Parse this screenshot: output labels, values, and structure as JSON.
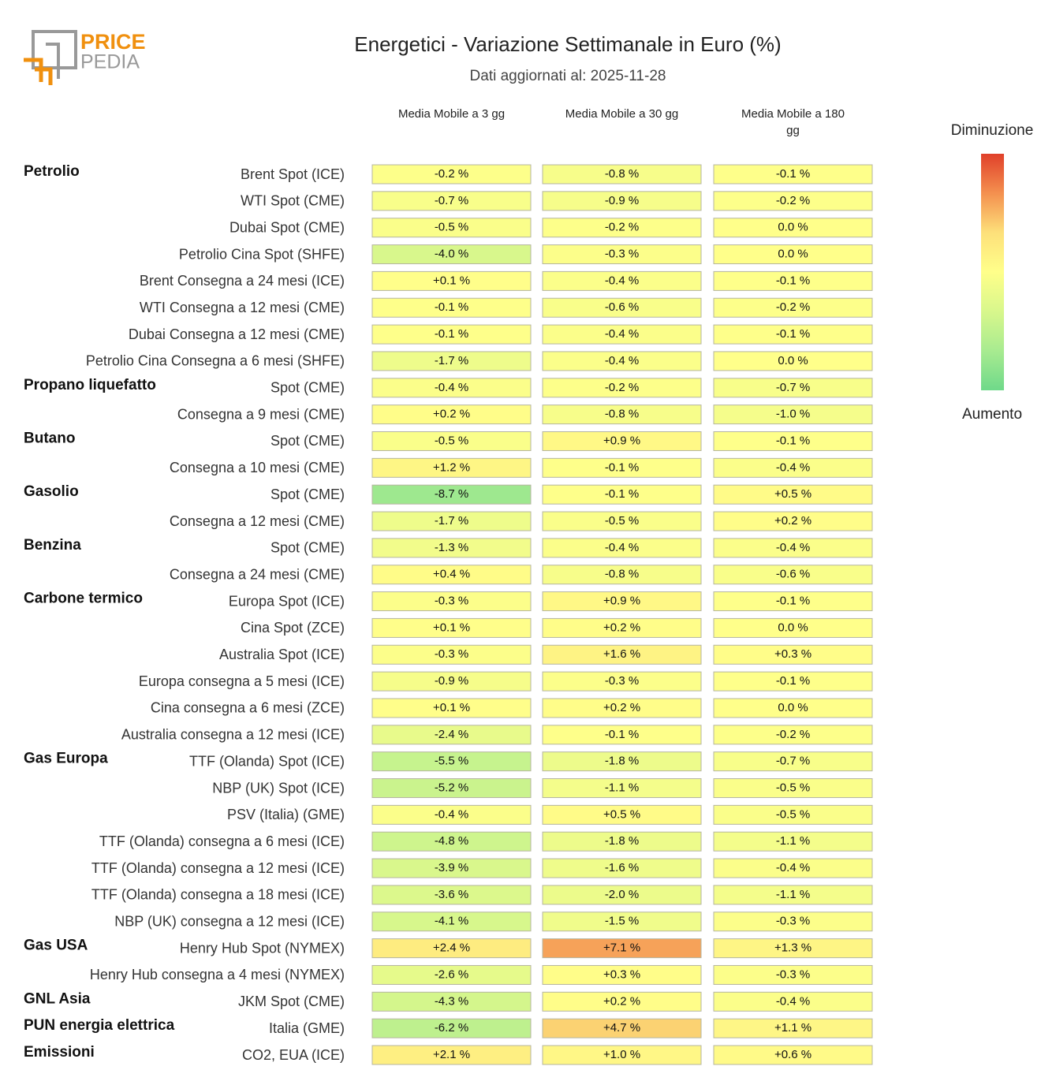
{
  "logo": {
    "line1": "PRICE",
    "line2": "PEDIA"
  },
  "chart_data": {
    "type": "heatmap",
    "title": "Energetici - Variazione Settimanale in Euro (%)",
    "subtitle": "Dati aggiornati al: 2025-11-28",
    "categories": [
      "Brent Spot (ICE)",
      "WTI Spot (CME)",
      "Dubai Spot (CME)",
      "Petrolio Cina Spot (SHFE)",
      "Brent Consegna a 24 mesi (ICE)",
      "WTI Consegna a 12 mesi (CME)",
      "Dubai Consegna a 12 mesi (CME)",
      "Petrolio Cina Consegna a 6 mesi (SHFE)",
      "Spot (CME)",
      "Consegna a 9 mesi (CME)",
      "Spot (CME)",
      "Consegna a 10 mesi (CME)",
      "Spot (CME)",
      "Consegna a 12 mesi (CME)",
      "Spot (CME)",
      "Consegna a 24 mesi (CME)",
      "Europa Spot (ICE)",
      "Cina Spot (ZCE)",
      "Australia Spot (ICE)",
      "Europa consegna a 5 mesi (ICE)",
      "Cina consegna a 6 mesi (ZCE)",
      "Australia consegna a 12 mesi (ICE)",
      "TTF (Olanda) Spot (ICE)",
      "NBP (UK) Spot (ICE)",
      "PSV (Italia) (GME)",
      "TTF (Olanda) consegna a 6 mesi (ICE)",
      "TTF (Olanda) consegna a 12 mesi (ICE)",
      "TTF (Olanda) consegna a 18 mesi (ICE)",
      "NBP (UK) consegna a 12 mesi (ICE)",
      "Henry Hub Spot (NYMEX)",
      "Henry Hub consegna a 4 mesi (NYMEX)",
      "JKM Spot (CME)",
      "Italia (GME)",
      "CO2, EUA (ICE)"
    ],
    "groups": [
      "Petrolio",
      null,
      null,
      null,
      null,
      null,
      null,
      null,
      "Propano liquefatto",
      null,
      "Butano",
      null,
      "Gasolio",
      null,
      "Benzina",
      null,
      "Carbone termico",
      null,
      null,
      null,
      null,
      null,
      "Gas Europa",
      null,
      null,
      null,
      null,
      null,
      null,
      "Gas USA",
      null,
      "GNL Asia",
      "PUN energia elettrica",
      "Emissioni"
    ],
    "series": [
      {
        "name": "Media Mobile a 3 gg",
        "values": [
          -0.2,
          -0.7,
          -0.5,
          -4.0,
          0.1,
          -0.1,
          -0.1,
          -1.7,
          -0.4,
          0.2,
          -0.5,
          1.2,
          -8.7,
          -1.7,
          -1.3,
          0.4,
          -0.3,
          0.1,
          -0.3,
          -0.9,
          0.1,
          -2.4,
          -5.5,
          -5.2,
          -0.4,
          -4.8,
          -3.9,
          -3.6,
          -4.1,
          2.4,
          -2.6,
          -4.3,
          -6.2,
          2.1
        ],
        "value_labels": [
          "-0.2 %",
          "-0.7 %",
          "-0.5 %",
          "-4.0 %",
          "+0.1 %",
          "-0.1 %",
          "-0.1 %",
          "-1.7 %",
          "-0.4 %",
          "+0.2 %",
          "-0.5 %",
          "+1.2 %",
          "-8.7 %",
          "-1.7 %",
          "-1.3 %",
          "+0.4 %",
          "-0.3 %",
          "+0.1 %",
          "-0.3 %",
          "-0.9 %",
          "+0.1 %",
          "-2.4 %",
          "-5.5 %",
          "-5.2 %",
          "-0.4 %",
          "-4.8 %",
          "-3.9 %",
          "-3.6 %",
          "-4.1 %",
          "+2.4 %",
          "-2.6 %",
          "-4.3 %",
          "-6.2 %",
          "+2.1 %"
        ]
      },
      {
        "name": "Media Mobile a 30 gg",
        "values": [
          -0.8,
          -0.9,
          -0.2,
          -0.3,
          -0.4,
          -0.6,
          -0.4,
          -0.4,
          -0.2,
          -0.8,
          0.9,
          -0.1,
          -0.1,
          -0.5,
          -0.4,
          -0.8,
          0.9,
          0.2,
          1.6,
          -0.3,
          0.2,
          -0.1,
          -1.8,
          -1.1,
          0.5,
          -1.8,
          -1.6,
          -2.0,
          -1.5,
          7.1,
          0.3,
          0.2,
          4.7,
          1.0
        ],
        "value_labels": [
          "-0.8 %",
          "-0.9 %",
          "-0.2 %",
          "-0.3 %",
          "-0.4 %",
          "-0.6 %",
          "-0.4 %",
          "-0.4 %",
          "-0.2 %",
          "-0.8 %",
          "+0.9 %",
          "-0.1 %",
          "-0.1 %",
          "-0.5 %",
          "-0.4 %",
          "-0.8 %",
          "+0.9 %",
          "+0.2 %",
          "+1.6 %",
          "-0.3 %",
          "+0.2 %",
          "-0.1 %",
          "-1.8 %",
          "-1.1 %",
          "+0.5 %",
          "-1.8 %",
          "-1.6 %",
          "-2.0 %",
          "-1.5 %",
          "+7.1 %",
          "+0.3 %",
          "+0.2 %",
          "+4.7 %",
          "+1.0 %"
        ]
      },
      {
        "name": "Media Mobile a 180 gg",
        "values": [
          -0.1,
          -0.2,
          0.0,
          0.0,
          -0.1,
          -0.2,
          -0.1,
          0.0,
          -0.7,
          -1.0,
          -0.1,
          -0.4,
          0.5,
          0.2,
          -0.4,
          -0.6,
          -0.1,
          0.0,
          0.3,
          -0.1,
          0.0,
          -0.2,
          -0.7,
          -0.5,
          -0.5,
          -1.1,
          -0.4,
          -1.1,
          -0.3,
          1.3,
          -0.3,
          -0.4,
          1.1,
          0.6
        ],
        "value_labels": [
          "-0.1 %",
          "-0.2 %",
          "0.0 %",
          "0.0 %",
          "-0.1 %",
          "-0.2 %",
          "-0.1 %",
          "0.0 %",
          "-0.7 %",
          "-1.0 %",
          "-0.1 %",
          "-0.4 %",
          "+0.5 %",
          "+0.2 %",
          "-0.4 %",
          "-0.6 %",
          "-0.1 %",
          "0.0 %",
          "+0.3 %",
          "-0.1 %",
          "0.0 %",
          "-0.2 %",
          "-0.7 %",
          "-0.5 %",
          "-0.5 %",
          "-1.1 %",
          "-0.4 %",
          "-1.1 %",
          "-0.3 %",
          "+1.3 %",
          "-0.3 %",
          "-0.4 %",
          "+1.1 %",
          "+0.6 %"
        ]
      }
    ],
    "zlim": [
      -12,
      12
    ],
    "colorscale": [
      "#6fd98a",
      "#a8eb90",
      "#d8f78c",
      "#ffff8a",
      "#fde07a",
      "#f4904f",
      "#e0402a"
    ],
    "legend": {
      "top": "Diminuzione",
      "bottom": "Aumento"
    }
  }
}
